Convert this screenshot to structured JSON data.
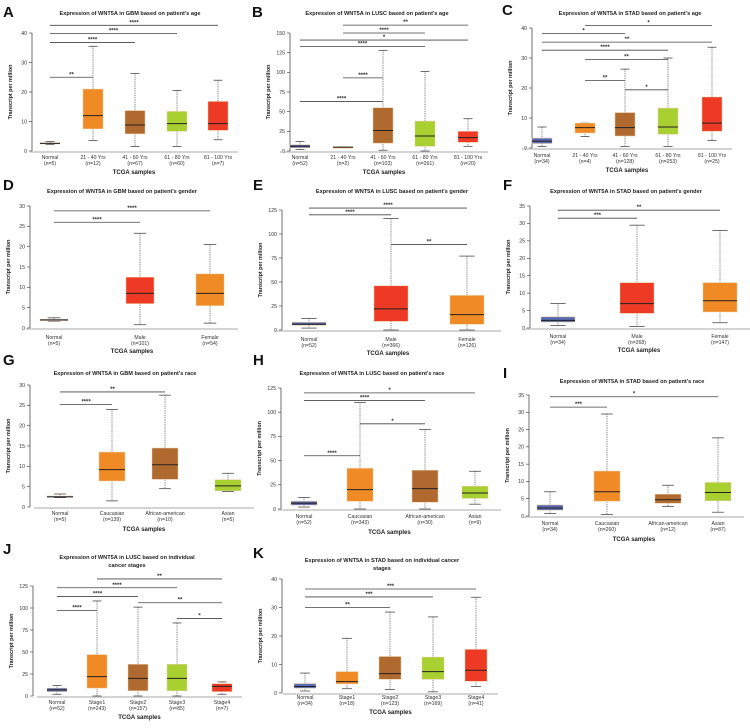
{
  "chart_data": [
    {
      "panel": "A",
      "type": "box",
      "title": "Expression of WNT5A in GBM based on patient's age",
      "xlabel": "TCGA samples",
      "ylabel": "Transcript per million",
      "ylim": [
        0,
        40
      ],
      "yticks": [
        0,
        10,
        20,
        30,
        40
      ],
      "categories": [
        {
          "label": "Normal",
          "n": "(n=5)"
        },
        {
          "label": "21 - 40 Yrs",
          "n": "(n=12)"
        },
        {
          "label": "41 - 60 Yrs",
          "n": "(n=67)"
        },
        {
          "label": "61 - 80 Yrs",
          "n": "(n=60)"
        },
        {
          "label": "81 - 100 Yrs",
          "n": "(n=7)"
        }
      ],
      "boxes": [
        {
          "min": 2.2,
          "q1": 2.4,
          "median": 2.6,
          "q3": 2.8,
          "max": 3.2,
          "color": "#5b6bb0"
        },
        {
          "min": 3.5,
          "q1": 7.5,
          "median": 12,
          "q3": 21,
          "max": 35.5,
          "color": "#f08a24"
        },
        {
          "min": 1.5,
          "q1": 5.8,
          "median": 8.8,
          "q3": 13.7,
          "max": 26.3,
          "color": "#b06a30"
        },
        {
          "min": 1.5,
          "q1": 6.7,
          "median": 9.3,
          "q3": 13.4,
          "max": 20.5,
          "color": "#a8d030"
        },
        {
          "min": 3.8,
          "q1": 7,
          "median": 9.3,
          "q3": 16.8,
          "max": 24,
          "color": "#ee3a24"
        }
      ],
      "significance": [
        {
          "from": 0,
          "to": 1,
          "label": "**",
          "y": 25
        },
        {
          "from": 0,
          "to": 2,
          "label": "****",
          "y": 36.8
        },
        {
          "from": 0,
          "to": 3,
          "label": "****",
          "y": 39.8
        },
        {
          "from": 0,
          "to": 4,
          "label": "****",
          "y": 42.6
        }
      ]
    },
    {
      "panel": "B",
      "type": "box",
      "title": "Expression of WNT5A in LUSC based on patient's age",
      "xlabel": "TCGA samples",
      "ylabel": "Transcript per million",
      "ylim": [
        0,
        150
      ],
      "yticks": [
        0,
        25,
        50,
        75,
        100,
        125,
        150
      ],
      "categories": [
        {
          "label": "Normal",
          "n": "(n=52)"
        },
        {
          "label": "21 - 40 Yrs",
          "n": "(n=2)"
        },
        {
          "label": "41 - 60 Yrs",
          "n": "(n=103)"
        },
        {
          "label": "61 - 80 Yrs",
          "n": "(n=261)"
        },
        {
          "label": "81 - 100 Yrs",
          "n": "(n=20)"
        }
      ],
      "boxes": [
        {
          "min": 2,
          "q1": 4,
          "median": 6,
          "q3": 8,
          "max": 12,
          "color": "#5b6bb0"
        },
        {
          "min": 5,
          "q1": 5,
          "median": 5,
          "q3": 5,
          "max": 5,
          "color": "#f08a24"
        },
        {
          "min": 1,
          "q1": 10,
          "median": 26,
          "q3": 55,
          "max": 128,
          "color": "#b06a30"
        },
        {
          "min": 0,
          "q1": 6,
          "median": 19,
          "q3": 38,
          "max": 101,
          "color": "#a8d030"
        },
        {
          "min": 6,
          "q1": 11,
          "median": 17,
          "q3": 25,
          "max": 41,
          "color": "#ee3a24"
        }
      ],
      "significance": [
        {
          "from": 0,
          "to": 2,
          "label": "****",
          "y": 63
        },
        {
          "from": 1,
          "to": 2,
          "label": "****",
          "y": 93
        },
        {
          "from": 0,
          "to": 3,
          "label": "****",
          "y": 133
        },
        {
          "from": 0,
          "to": 4,
          "label": "*",
          "y": 141
        },
        {
          "from": 1,
          "to": 3,
          "label": "****",
          "y": 150
        },
        {
          "from": 1,
          "to": 4,
          "label": "**",
          "y": 160
        }
      ]
    },
    {
      "panel": "C",
      "type": "box",
      "title": "Expression of WNT5A in STAD based on patient's age",
      "xlabel": "TCGA samples",
      "ylabel": "Transcript per million",
      "ylim": [
        0,
        40
      ],
      "yticks": [
        0,
        10,
        20,
        30,
        40
      ],
      "categories": [
        {
          "label": "Normal",
          "n": "(n=34)"
        },
        {
          "label": "21 - 40 Yrs",
          "n": "(n=4)"
        },
        {
          "label": "41 - 60 Yrs",
          "n": "(n=128)"
        },
        {
          "label": "61 - 80 Yrs",
          "n": "(n=253)"
        },
        {
          "label": "81 - 100 Yrs",
          "n": "(n=25)"
        }
      ],
      "boxes": [
        {
          "min": 0.5,
          "q1": 1.5,
          "median": 2.3,
          "q3": 3.3,
          "max": 7,
          "color": "#5b6bb0"
        },
        {
          "min": 3.8,
          "q1": 5,
          "median": 6.8,
          "q3": 8.3,
          "max": 8.3,
          "color": "#f08a24"
        },
        {
          "min": 0.5,
          "q1": 4,
          "median": 6.8,
          "q3": 11.8,
          "max": 26.3,
          "color": "#b06a30"
        },
        {
          "min": 0.5,
          "q1": 4.6,
          "median": 7,
          "q3": 13.3,
          "max": 30,
          "color": "#a8d030"
        },
        {
          "min": 2.5,
          "q1": 5.6,
          "median": 8.3,
          "q3": 17,
          "max": 33.6,
          "color": "#ee3a24"
        }
      ],
      "significance": [
        {
          "from": 2,
          "to": 3,
          "label": "*",
          "y": 19.4
        },
        {
          "from": 1,
          "to": 2,
          "label": "**",
          "y": 22.5
        },
        {
          "from": 1,
          "to": 3,
          "label": "**",
          "y": 29.5
        },
        {
          "from": 0,
          "to": 3,
          "label": "****",
          "y": 32.6
        },
        {
          "from": 0,
          "to": 4,
          "label": "**",
          "y": 35.3
        },
        {
          "from": 0,
          "to": 2,
          "label": "*",
          "y": 38.2
        },
        {
          "from": 1,
          "to": 4,
          "label": "*",
          "y": 40.8
        }
      ]
    },
    {
      "panel": "D",
      "type": "box",
      "title": "Expression of WNT5A in GBM based on patient's gender",
      "xlabel": "TCGA samples",
      "ylabel": "Transcript per million",
      "ylim": [
        0,
        30
      ],
      "yticks": [
        0,
        5,
        10,
        15,
        20,
        25,
        30
      ],
      "categories": [
        {
          "label": "Normal",
          "n": "(n=5)"
        },
        {
          "label": "Male",
          "n": "(n=101)"
        },
        {
          "label": "Female",
          "n": "(n=54)"
        }
      ],
      "boxes": [
        {
          "min": 1.7,
          "q1": 1.8,
          "median": 2,
          "q3": 2.1,
          "max": 2.5,
          "color": "#5b6bb0"
        },
        {
          "min": 0.8,
          "q1": 6,
          "median": 8.5,
          "q3": 12.5,
          "max": 23.3,
          "color": "#ee3a24"
        },
        {
          "min": 1.2,
          "q1": 5.5,
          "median": 8.5,
          "q3": 13.3,
          "max": 20.5,
          "color": "#f08a24"
        }
      ],
      "significance": [
        {
          "from": 0,
          "to": 1,
          "label": "****",
          "y": 26
        },
        {
          "from": 0,
          "to": 2,
          "label": "****",
          "y": 28.8
        }
      ]
    },
    {
      "panel": "E",
      "type": "box",
      "title": "Expression of WNT5A in LUSC based on patient's gender",
      "xlabel": "TCGA samples",
      "ylabel": "Transcript per million",
      "ylim": [
        0,
        125
      ],
      "yticks": [
        0,
        25,
        50,
        75,
        100,
        125
      ],
      "categories": [
        {
          "label": "Normal",
          "n": "(n=52)"
        },
        {
          "label": "Male",
          "n": "(n=366)"
        },
        {
          "label": "Female",
          "n": "(n=126)"
        }
      ],
      "boxes": [
        {
          "min": 2,
          "q1": 5,
          "median": 6,
          "q3": 8,
          "max": 12,
          "color": "#5b6bb0"
        },
        {
          "min": 0,
          "q1": 9,
          "median": 22,
          "q3": 46,
          "max": 116,
          "color": "#ee3a24"
        },
        {
          "min": 0,
          "q1": 6,
          "median": 16,
          "q3": 36,
          "max": 77,
          "color": "#f08a24"
        }
      ],
      "significance": [
        {
          "from": 1,
          "to": 2,
          "label": "**",
          "y": 89
        },
        {
          "from": 0,
          "to": 1,
          "label": "****",
          "y": 120
        },
        {
          "from": 0,
          "to": 2,
          "label": "****",
          "y": 127
        }
      ]
    },
    {
      "panel": "F",
      "type": "box",
      "title": "Expression of WNT5A in STAD based on patient's gender",
      "xlabel": "TCGA samples",
      "ylabel": "Transcript per million",
      "ylim": [
        0,
        35
      ],
      "yticks": [
        0,
        5,
        10,
        15,
        20,
        25,
        30,
        35
      ],
      "categories": [
        {
          "label": "Normal",
          "n": "(n=34)"
        },
        {
          "label": "Male",
          "n": "(n=268)"
        },
        {
          "label": "Female",
          "n": "(n=147)"
        }
      ],
      "boxes": [
        {
          "min": 0.7,
          "q1": 1.7,
          "median": 2.2,
          "q3": 3.2,
          "max": 7,
          "color": "#5b6bb0"
        },
        {
          "min": 0.4,
          "q1": 4.2,
          "median": 7,
          "q3": 13,
          "max": 29.5,
          "color": "#ee3a24"
        },
        {
          "min": 1.5,
          "q1": 4.6,
          "median": 7.8,
          "q3": 13,
          "max": 28,
          "color": "#f08a24"
        }
      ],
      "significance": [
        {
          "from": 0,
          "to": 1,
          "label": "***",
          "y": 31.5
        },
        {
          "from": 0,
          "to": 2,
          "label": "**",
          "y": 33.8
        }
      ]
    },
    {
      "panel": "G",
      "type": "box",
      "title": "Expression of WNT5A in GBM based on patient's race",
      "xlabel": "TCGA samples",
      "ylabel": "Transcript per million",
      "ylim": [
        0,
        30
      ],
      "yticks": [
        0,
        5,
        10,
        15,
        20,
        25,
        30
      ],
      "categories": [
        {
          "label": "Normal",
          "n": "(n=5)"
        },
        {
          "label": "Caucasian",
          "n": "(n=139)"
        },
        {
          "label": "African-american",
          "n": "(n=10)"
        },
        {
          "label": "Asian",
          "n": "(n=5)"
        }
      ],
      "boxes": [
        {
          "min": 2.3,
          "q1": 2.4,
          "median": 2.5,
          "q3": 2.7,
          "max": 3.2,
          "color": "#5b6bb0"
        },
        {
          "min": 1.5,
          "q1": 6.4,
          "median": 9.2,
          "q3": 13.5,
          "max": 24,
          "color": "#f08a24"
        },
        {
          "min": 4.5,
          "q1": 6.8,
          "median": 10.4,
          "q3": 14.5,
          "max": 27.5,
          "color": "#b06a30"
        },
        {
          "min": 3.8,
          "q1": 4,
          "median": 5.2,
          "q3": 6.7,
          "max": 8.3,
          "color": "#a8d030"
        }
      ],
      "significance": [
        {
          "from": 0,
          "to": 1,
          "label": "****",
          "y": 25.2
        },
        {
          "from": 0,
          "to": 2,
          "label": "**",
          "y": 28.3
        }
      ]
    },
    {
      "panel": "H",
      "type": "box",
      "title": "Expression of WNT5A in LUSC based on patient's race",
      "xlabel": "TCGA samples",
      "ylabel": "Transcript per million",
      "ylim": [
        0,
        125
      ],
      "yticks": [
        0,
        25,
        50,
        75,
        100,
        125
      ],
      "categories": [
        {
          "label": "Normal",
          "n": "(n=52)"
        },
        {
          "label": "Caucasian",
          "n": "(n=343)"
        },
        {
          "label": "African-american",
          "n": "(n=30)"
        },
        {
          "label": "Asian",
          "n": "(n=9)"
        }
      ],
      "boxes": [
        {
          "min": 2,
          "q1": 4,
          "median": 6,
          "q3": 8,
          "max": 12,
          "color": "#5b6bb0"
        },
        {
          "min": 0,
          "q1": 8,
          "median": 20,
          "q3": 42,
          "max": 110,
          "color": "#f08a24"
        },
        {
          "min": 0,
          "q1": 7,
          "median": 21,
          "q3": 40,
          "max": 82,
          "color": "#b06a30"
        },
        {
          "min": 5,
          "q1": 11,
          "median": 16.5,
          "q3": 23.5,
          "max": 39,
          "color": "#a8d030"
        }
      ],
      "significance": [
        {
          "from": 0,
          "to": 1,
          "label": "****",
          "y": 55
        },
        {
          "from": 1,
          "to": 2,
          "label": "*",
          "y": 88
        },
        {
          "from": 0,
          "to": 2,
          "label": "****",
          "y": 112
        },
        {
          "from": 0,
          "to": 3,
          "label": "*",
          "y": 120
        }
      ]
    },
    {
      "panel": "I",
      "type": "box",
      "title": "Expression of WNT5A in STAD based on patient's race",
      "xlabel": "TCGA samples",
      "ylabel": "Transcript per million",
      "ylim": [
        0,
        35
      ],
      "yticks": [
        0,
        5,
        10,
        15,
        20,
        25,
        30,
        35
      ],
      "categories": [
        {
          "label": "Normal",
          "n": "(n=34)"
        },
        {
          "label": "Caucasian",
          "n": "(n=260)"
        },
        {
          "label": "African-american",
          "n": "(n=12)"
        },
        {
          "label": "Asian",
          "n": "(n=87)"
        }
      ],
      "boxes": [
        {
          "min": 0.7,
          "q1": 1.7,
          "median": 2.3,
          "q3": 3.2,
          "max": 7,
          "color": "#5b6bb0"
        },
        {
          "min": 0.4,
          "q1": 4.3,
          "median": 7,
          "q3": 13,
          "max": 29.5,
          "color": "#f08a24"
        },
        {
          "min": 2.8,
          "q1": 3.7,
          "median": 4.7,
          "q3": 6.3,
          "max": 8.9,
          "color": "#b06a30"
        },
        {
          "min": 1.1,
          "q1": 4.4,
          "median": 6.8,
          "q3": 9.7,
          "max": 22.6,
          "color": "#a8d030"
        }
      ],
      "significance": [
        {
          "from": 0,
          "to": 1,
          "label": "***",
          "y": 31.5
        },
        {
          "from": 0,
          "to": 3,
          "label": "*",
          "y": 34.5
        }
      ]
    },
    {
      "panel": "J",
      "type": "box",
      "title": "Expression of WNT5A in LUSC based on individual cancer stages",
      "xlabel": "TCGA samples",
      "ylabel": "Transcript per million",
      "ylim": [
        0,
        125
      ],
      "yticks": [
        0,
        25,
        50,
        75,
        100,
        125
      ],
      "categories": [
        {
          "label": "Normal",
          "n": "(n=52)"
        },
        {
          "label": "Stage1",
          "n": "(n=243)"
        },
        {
          "label": "Stage2",
          "n": "(n=157)"
        },
        {
          "label": "Stage3",
          "n": "(n=85)"
        },
        {
          "label": "Stage4",
          "n": "(n=7)"
        }
      ],
      "boxes": [
        {
          "min": 2,
          "q1": 5,
          "median": 7,
          "q3": 9,
          "max": 12,
          "color": "#5b6bb0"
        },
        {
          "min": 0,
          "q1": 9,
          "median": 22,
          "q3": 47,
          "max": 108,
          "color": "#f08a24"
        },
        {
          "min": 0,
          "q1": 6,
          "median": 20,
          "q3": 36,
          "max": 101,
          "color": "#b06a30"
        },
        {
          "min": 0,
          "q1": 6,
          "median": 20,
          "q3": 36,
          "max": 83,
          "color": "#a8d030"
        },
        {
          "min": 2,
          "q1": 5,
          "median": 11,
          "q3": 14,
          "max": 16,
          "color": "#ee3a24"
        }
      ],
      "significance": [
        {
          "from": 0,
          "to": 1,
          "label": "****",
          "y": 97
        },
        {
          "from": 3,
          "to": 4,
          "label": "*",
          "y": 88
        },
        {
          "from": 2,
          "to": 4,
          "label": "**",
          "y": 106
        },
        {
          "from": 0,
          "to": 2,
          "label": "****",
          "y": 113
        },
        {
          "from": 0,
          "to": 3,
          "label": "****",
          "y": 123
        },
        {
          "from": 1,
          "to": 4,
          "label": "**",
          "y": 133
        }
      ]
    },
    {
      "panel": "K",
      "type": "box",
      "title": "Expression of WNT5A in STAD based on individual cancer stages",
      "xlabel": "TCGA samples",
      "ylabel": "Transcript per million",
      "ylim": [
        0,
        40
      ],
      "yticks": [
        0,
        10,
        20,
        30,
        40
      ],
      "categories": [
        {
          "label": "Normal",
          "n": "(n=34)"
        },
        {
          "label": "Stage1",
          "n": "(n=18)"
        },
        {
          "label": "Stage2",
          "n": "(n=123)"
        },
        {
          "label": "Stage3",
          "n": "(n=169)"
        },
        {
          "label": "Stage4",
          "n": "(n=41)"
        }
      ],
      "boxes": [
        {
          "min": 0.7,
          "q1": 1.7,
          "median": 2.3,
          "q3": 3.3,
          "max": 7,
          "color": "#5b6bb0"
        },
        {
          "min": 1.5,
          "q1": 3.2,
          "median": 4,
          "q3": 7.5,
          "max": 19.2,
          "color": "#f08a24"
        },
        {
          "min": 1.2,
          "q1": 4.8,
          "median": 6.8,
          "q3": 12.8,
          "max": 28.4,
          "color": "#b06a30"
        },
        {
          "min": 0.4,
          "q1": 4.8,
          "median": 7.5,
          "q3": 12.6,
          "max": 26.7,
          "color": "#a8d030"
        },
        {
          "min": 2.3,
          "q1": 4.1,
          "median": 8,
          "q3": 15.3,
          "max": 33.6,
          "color": "#ee3a24"
        }
      ],
      "significance": [
        {
          "from": 0,
          "to": 2,
          "label": "**",
          "y": 30
        },
        {
          "from": 0,
          "to": 3,
          "label": "***",
          "y": 33.7
        },
        {
          "from": 0,
          "to": 4,
          "label": "***",
          "y": 36.5
        }
      ]
    }
  ]
}
